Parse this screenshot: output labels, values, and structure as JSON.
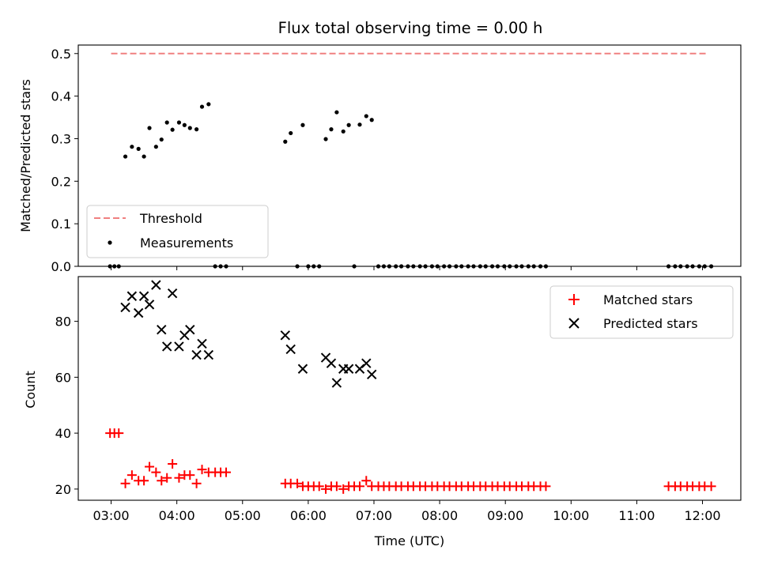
{
  "chart_data": [
    {
      "type": "scatter",
      "title": "Flux total observing time = 0.00 h",
      "xlabel": "",
      "ylabel": "Matched/Predicted stars",
      "xlim": [
        "02:30",
        "12:35"
      ],
      "ylim": [
        0,
        0.52
      ],
      "yticks": [
        "0.0",
        "0.1",
        "0.2",
        "0.3",
        "0.4",
        "0.5"
      ],
      "grid": false,
      "legend_position": "lower-left",
      "threshold": {
        "name": "Threshold",
        "value": 0.5,
        "x_range": [
          "03:00",
          "12:05"
        ],
        "color": "#f08080",
        "style": "dashed"
      },
      "series": [
        {
          "name": "Measurements",
          "color": "#000000",
          "marker": "dot",
          "points": [
            [
              "02:59",
              0.0
            ],
            [
              "03:03",
              0.0
            ],
            [
              "03:07",
              0.0
            ],
            [
              "03:13",
              0.258
            ],
            [
              "03:19",
              0.281
            ],
            [
              "03:25",
              0.276
            ],
            [
              "03:30",
              0.258
            ],
            [
              "03:35",
              0.325
            ],
            [
              "03:41",
              0.281
            ],
            [
              "03:46",
              0.298
            ],
            [
              "03:51",
              0.338
            ],
            [
              "03:56",
              0.321
            ],
            [
              "04:02",
              0.338
            ],
            [
              "04:07",
              0.332
            ],
            [
              "04:12",
              0.325
            ],
            [
              "04:18",
              0.322
            ],
            [
              "04:23",
              0.375
            ],
            [
              "04:29",
              0.381
            ],
            [
              "04:35",
              0.0
            ],
            [
              "04:40",
              0.0
            ],
            [
              "04:45",
              0.0
            ],
            [
              "05:39",
              0.293
            ],
            [
              "05:44",
              0.313
            ],
            [
              "05:50",
              0.0
            ],
            [
              "05:55",
              0.332
            ],
            [
              "06:00",
              0.0
            ],
            [
              "06:05",
              0.0
            ],
            [
              "06:10",
              0.0
            ],
            [
              "06:16",
              0.299
            ],
            [
              "06:21",
              0.322
            ],
            [
              "06:26",
              0.362
            ],
            [
              "06:32",
              0.317
            ],
            [
              "06:37",
              0.332
            ],
            [
              "06:42",
              0.0
            ],
            [
              "06:47",
              0.333
            ],
            [
              "06:53",
              0.353
            ],
            [
              "06:58",
              0.344
            ],
            [
              "07:04",
              0.0
            ],
            [
              "07:09",
              0.0
            ],
            [
              "07:14",
              0.0
            ],
            [
              "07:20",
              0.0
            ],
            [
              "07:25",
              0.0
            ],
            [
              "07:31",
              0.0
            ],
            [
              "07:36",
              0.0
            ],
            [
              "07:42",
              0.0
            ],
            [
              "07:47",
              0.0
            ],
            [
              "07:53",
              0.0
            ],
            [
              "07:58",
              0.0
            ],
            [
              "08:04",
              0.0
            ],
            [
              "08:09",
              0.0
            ],
            [
              "08:15",
              0.0
            ],
            [
              "08:20",
              0.0
            ],
            [
              "08:26",
              0.0
            ],
            [
              "08:31",
              0.0
            ],
            [
              "08:37",
              0.0
            ],
            [
              "08:42",
              0.0
            ],
            [
              "08:48",
              0.0
            ],
            [
              "08:53",
              0.0
            ],
            [
              "08:59",
              0.0
            ],
            [
              "09:04",
              0.0
            ],
            [
              "09:10",
              0.0
            ],
            [
              "09:15",
              0.0
            ],
            [
              "09:21",
              0.0
            ],
            [
              "09:26",
              0.0
            ],
            [
              "09:32",
              0.0
            ],
            [
              "09:37",
              0.0
            ],
            [
              "11:29",
              0.0
            ],
            [
              "11:35",
              0.0
            ],
            [
              "11:40",
              0.0
            ],
            [
              "11:46",
              0.0
            ],
            [
              "11:51",
              0.0
            ],
            [
              "11:57",
              0.0
            ],
            [
              "12:02",
              0.0
            ],
            [
              "12:08",
              0.0
            ]
          ]
        }
      ]
    },
    {
      "type": "scatter",
      "title": "",
      "xlabel": "Time (UTC)",
      "ylabel": "Count",
      "xlim": [
        "02:30",
        "12:35"
      ],
      "ylim": [
        16,
        96
      ],
      "xticks": [
        "03:00",
        "04:00",
        "05:00",
        "06:00",
        "07:00",
        "08:00",
        "09:00",
        "10:00",
        "11:00",
        "12:00"
      ],
      "yticks": [
        "20",
        "40",
        "60",
        "80"
      ],
      "grid": false,
      "legend_position": "upper-right",
      "series": [
        {
          "name": "Matched stars",
          "color": "#ff0000",
          "marker": "plus",
          "points": [
            [
              "02:59",
              40
            ],
            [
              "03:03",
              40
            ],
            [
              "03:07",
              40
            ],
            [
              "03:13",
              22
            ],
            [
              "03:19",
              25
            ],
            [
              "03:25",
              23
            ],
            [
              "03:30",
              23
            ],
            [
              "03:35",
              28
            ],
            [
              "03:41",
              26
            ],
            [
              "03:46",
              23
            ],
            [
              "03:51",
              24
            ],
            [
              "03:56",
              29
            ],
            [
              "04:02",
              24
            ],
            [
              "04:07",
              25
            ],
            [
              "04:12",
              25
            ],
            [
              "04:18",
              22
            ],
            [
              "04:23",
              27
            ],
            [
              "04:29",
              26
            ],
            [
              "04:35",
              26
            ],
            [
              "04:40",
              26
            ],
            [
              "04:45",
              26
            ],
            [
              "05:39",
              22
            ],
            [
              "05:44",
              22
            ],
            [
              "05:50",
              22
            ],
            [
              "05:55",
              21
            ],
            [
              "06:00",
              21
            ],
            [
              "06:05",
              21
            ],
            [
              "06:10",
              21
            ],
            [
              "06:16",
              20
            ],
            [
              "06:21",
              21
            ],
            [
              "06:26",
              21
            ],
            [
              "06:32",
              20
            ],
            [
              "06:37",
              21
            ],
            [
              "06:42",
              21
            ],
            [
              "06:47",
              21
            ],
            [
              "06:53",
              23
            ],
            [
              "06:58",
              21
            ],
            [
              "07:04",
              21
            ],
            [
              "07:09",
              21
            ],
            [
              "07:14",
              21
            ],
            [
              "07:20",
              21
            ],
            [
              "07:25",
              21
            ],
            [
              "07:31",
              21
            ],
            [
              "07:36",
              21
            ],
            [
              "07:42",
              21
            ],
            [
              "07:47",
              21
            ],
            [
              "07:53",
              21
            ],
            [
              "07:58",
              21
            ],
            [
              "08:04",
              21
            ],
            [
              "08:09",
              21
            ],
            [
              "08:15",
              21
            ],
            [
              "08:20",
              21
            ],
            [
              "08:26",
              21
            ],
            [
              "08:31",
              21
            ],
            [
              "08:37",
              21
            ],
            [
              "08:42",
              21
            ],
            [
              "08:48",
              21
            ],
            [
              "08:53",
              21
            ],
            [
              "08:59",
              21
            ],
            [
              "09:04",
              21
            ],
            [
              "09:10",
              21
            ],
            [
              "09:15",
              21
            ],
            [
              "09:21",
              21
            ],
            [
              "09:26",
              21
            ],
            [
              "09:32",
              21
            ],
            [
              "09:37",
              21
            ],
            [
              "11:29",
              21
            ],
            [
              "11:35",
              21
            ],
            [
              "11:40",
              21
            ],
            [
              "11:46",
              21
            ],
            [
              "11:51",
              21
            ],
            [
              "11:57",
              21
            ],
            [
              "12:02",
              21
            ],
            [
              "12:08",
              21
            ]
          ]
        },
        {
          "name": "Predicted stars",
          "color": "#000000",
          "marker": "x",
          "points": [
            [
              "03:13",
              85
            ],
            [
              "03:19",
              89
            ],
            [
              "03:25",
              83
            ],
            [
              "03:30",
              89
            ],
            [
              "03:35",
              86
            ],
            [
              "03:41",
              93
            ],
            [
              "03:46",
              77
            ],
            [
              "03:51",
              71
            ],
            [
              "03:56",
              90
            ],
            [
              "04:02",
              71
            ],
            [
              "04:07",
              75
            ],
            [
              "04:12",
              77
            ],
            [
              "04:18",
              68
            ],
            [
              "04:23",
              72
            ],
            [
              "04:29",
              68
            ],
            [
              "05:39",
              75
            ],
            [
              "05:44",
              70
            ],
            [
              "05:55",
              63
            ],
            [
              "06:16",
              67
            ],
            [
              "06:21",
              65
            ],
            [
              "06:26",
              58
            ],
            [
              "06:32",
              63
            ],
            [
              "06:37",
              63
            ],
            [
              "06:47",
              63
            ],
            [
              "06:53",
              65
            ],
            [
              "06:58",
              61
            ]
          ]
        }
      ]
    }
  ]
}
